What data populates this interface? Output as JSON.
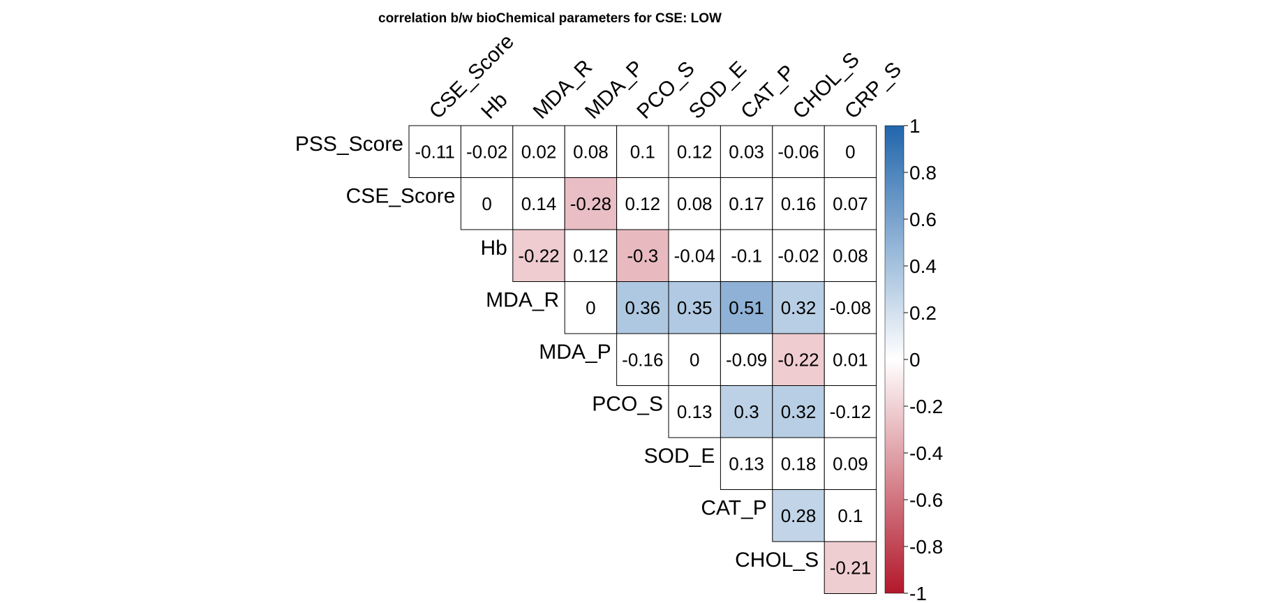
{
  "chart_data": {
    "type": "heatmap",
    "title": "correlation b/w bioChemical parameters for CSE: LOW",
    "shape": "upper-triangle",
    "rows": [
      "PSS_Score",
      "CSE_Score",
      "Hb",
      "MDA_R",
      "MDA_P",
      "PCO_S",
      "SOD_E",
      "CAT_P",
      "CHOL_S"
    ],
    "columns": [
      "CSE_Score",
      "Hb",
      "MDA_R",
      "MDA_P",
      "PCO_S",
      "SOD_E",
      "CAT_P",
      "CHOL_S",
      "CRP_S"
    ],
    "value_labels": [
      [
        "-0.11",
        "-0.02",
        "0.02",
        "0.08",
        "0.1",
        "0.12",
        "0.03",
        "-0.06",
        "0"
      ],
      [
        "0",
        "0.14",
        "-0.28",
        "0.12",
        "0.08",
        "0.17",
        "0.16",
        "0.07"
      ],
      [
        "-0.22",
        "0.12",
        "-0.3",
        "-0.04",
        "-0.1",
        "-0.02",
        "0.08"
      ],
      [
        "0",
        "0.36",
        "0.35",
        "0.51",
        "0.32",
        "-0.08"
      ],
      [
        "-0.16",
        "0",
        "-0.09",
        "-0.22",
        "0.01"
      ],
      [
        "0.13",
        "0.3",
        "0.32",
        "-0.12"
      ],
      [
        "0.13",
        "0.18",
        "0.09"
      ],
      [
        "0.28",
        "0.1"
      ],
      [
        "-0.21"
      ]
    ],
    "significant_mask": [
      [
        false,
        false,
        false,
        false,
        false,
        false,
        false,
        false,
        false
      ],
      [
        false,
        false,
        true,
        false,
        false,
        false,
        false,
        false
      ],
      [
        true,
        false,
        true,
        false,
        false,
        false,
        false
      ],
      [
        false,
        true,
        true,
        true,
        true,
        false
      ],
      [
        false,
        false,
        false,
        true,
        false
      ],
      [
        false,
        true,
        true,
        false
      ],
      [
        false,
        false,
        false
      ],
      [
        true,
        false
      ],
      [
        true
      ]
    ],
    "color_scale": {
      "min": -1,
      "max": 1,
      "ticks": [
        "1",
        "0.8",
        "0.6",
        "0.4",
        "0.2",
        "0",
        "-0.2",
        "-0.4",
        "-0.6",
        "-0.8",
        "-1"
      ],
      "colors": {
        "negative_end": "#B2182B",
        "mid": "#FFFFFF",
        "positive_end": "#2166AC"
      }
    },
    "legend_placement": "right"
  }
}
